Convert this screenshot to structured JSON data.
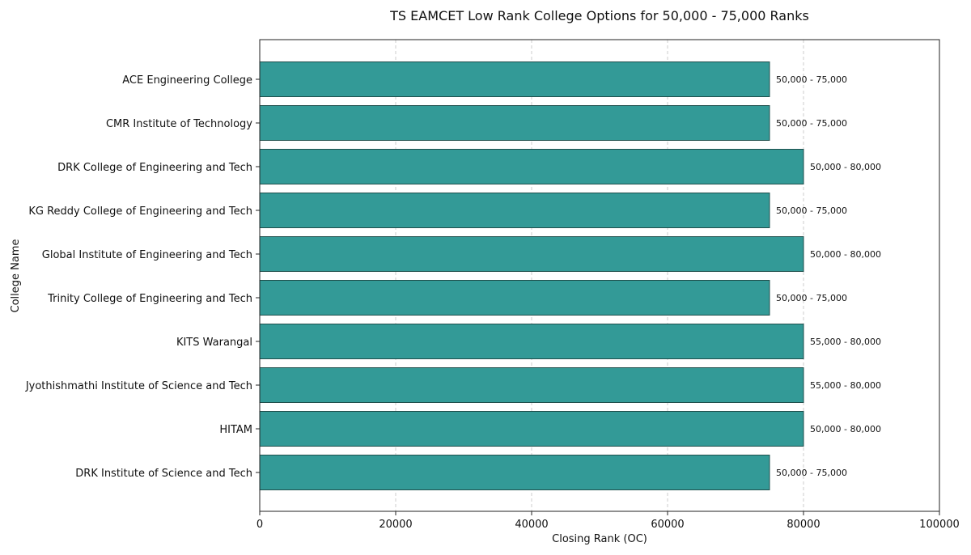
{
  "chart_data": {
    "type": "bar",
    "orientation": "horizontal",
    "title": "TS EAMCET Low Rank College Options for 50,000 - 75,000 Ranks",
    "xlabel": "Closing Rank (OC)",
    "ylabel": "College Name",
    "xlim": [
      0,
      100000
    ],
    "xticks": [
      0,
      20000,
      40000,
      60000,
      80000,
      100000
    ],
    "grid": "x-dashed",
    "bar_color": "#339a97",
    "categories": [
      "ACE Engineering College",
      "CMR Institute of Technology",
      "DRK College of Engineering and Tech",
      "KG Reddy College of Engineering and Tech",
      "Global Institute of Engineering and Tech",
      "Trinity College of Engineering and Tech",
      "KITS Warangal",
      "Jyothishmathi Institute of Science and Tech",
      "HITAM",
      "DRK Institute of Science and Tech"
    ],
    "values": [
      75000,
      75000,
      80000,
      75000,
      80000,
      75000,
      80000,
      80000,
      80000,
      75000
    ],
    "data_labels": [
      "50,000 - 75,000",
      "50,000 - 75,000",
      "50,000 - 80,000",
      "50,000 - 75,000",
      "50,000 - 80,000",
      "50,000 - 75,000",
      "55,000 - 80,000",
      "55,000 - 80,000",
      "50,000 - 80,000",
      "50,000 - 75,000"
    ]
  }
}
